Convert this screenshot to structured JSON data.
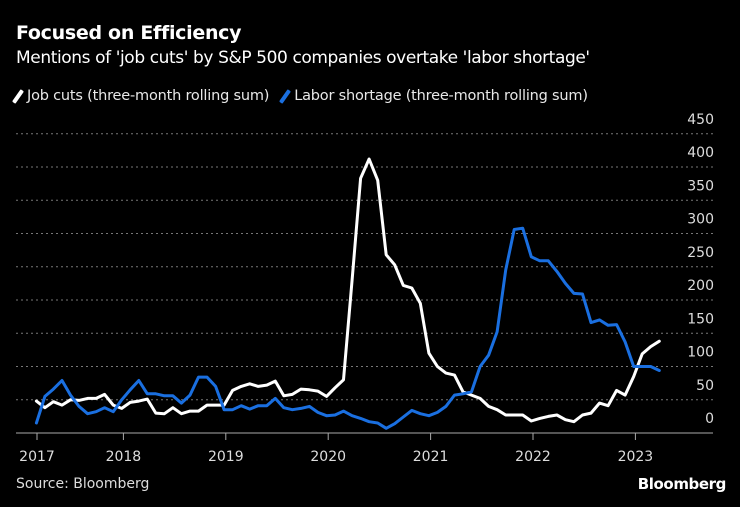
{
  "header": {
    "title": "Focused on Efficiency",
    "subtitle": "Mentions of 'job cuts' by S&P 500 companies overtake 'labor shortage'"
  },
  "footer": {
    "source": "Source: Bloomberg",
    "logo": "Bloomberg"
  },
  "colors": {
    "job_cuts": "#ffffff",
    "labor_shortage": "#1a6fe0",
    "background": "#000000"
  },
  "chart_data": {
    "type": "line",
    "title": "Focused on Efficiency",
    "subtitle": "Mentions of 'job cuts' by S&P 500 companies overtake 'labor shortage'",
    "xlabel": "",
    "ylabel": "",
    "start_month": "2017-02",
    "frequency": "monthly",
    "x_ticks": [
      "2017",
      "2018",
      "2019",
      "2020",
      "2021",
      "2022",
      "2023"
    ],
    "y_ticks": [
      "0",
      "50",
      "100",
      "150",
      "200",
      "250",
      "300",
      "350",
      "400",
      "450"
    ],
    "ylim": [
      0,
      450
    ],
    "grid": true,
    "legend_position": "top-left",
    "series": [
      {
        "name": "Job cuts (three-month rolling sum)",
        "color": "#ffffff",
        "values": [
          48,
          38,
          47,
          42,
          50,
          49,
          52,
          52,
          58,
          42,
          37,
          46,
          48,
          51,
          30,
          29,
          38,
          29,
          33,
          33,
          42,
          42,
          42,
          64,
          70,
          74,
          70,
          72,
          78,
          56,
          58,
          66,
          65,
          63,
          55,
          68,
          80,
          230,
          383,
          412,
          380,
          268,
          253,
          222,
          218,
          195,
          120,
          100,
          90,
          87,
          62,
          57,
          52,
          40,
          35,
          27,
          27,
          27,
          18,
          22,
          25,
          27,
          20,
          17,
          27,
          30,
          45,
          41,
          64,
          57,
          85,
          119,
          130,
          138
        ]
      },
      {
        "name": "Labor shortage (three-month rolling sum)",
        "color": "#1a6fe0",
        "values": [
          15,
          55,
          66,
          79,
          57,
          40,
          29,
          32,
          38,
          32,
          50,
          65,
          79,
          59,
          59,
          56,
          56,
          45,
          57,
          84,
          84,
          70,
          35,
          35,
          41,
          36,
          41,
          41,
          52,
          38,
          35,
          37,
          40,
          31,
          26,
          27,
          33,
          26,
          22,
          17,
          15,
          7,
          14,
          24,
          34,
          29,
          26,
          31,
          40,
          57,
          59,
          62,
          100,
          117,
          152,
          245,
          306,
          308,
          265,
          259,
          259,
          243,
          225,
          210,
          209,
          166,
          170,
          162,
          163,
          137,
          100,
          100,
          100,
          94
        ]
      }
    ]
  }
}
